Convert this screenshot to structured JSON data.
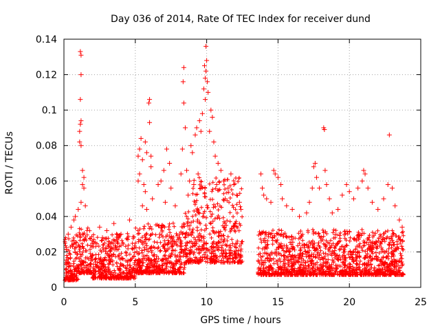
{
  "chart_data": {
    "type": "scatter",
    "title": "Day 036 of 2014, Rate Of TEC Index for receiver dund",
    "xlabel": "GPS time / hours",
    "ylabel": "ROTI / TECUs",
    "xlim": [
      0,
      25
    ],
    "ylim": [
      0,
      0.14
    ],
    "xticks": [
      0,
      5,
      10,
      15,
      20,
      25
    ],
    "xtick_labels": [
      "0",
      "5",
      "10",
      "15",
      "20",
      "25"
    ],
    "yticks": [
      0,
      0.02,
      0.04,
      0.06,
      0.08,
      0.1,
      0.12,
      0.14
    ],
    "ytick_labels": [
      "0",
      "0.02",
      "0.04",
      "0.06",
      "0.08",
      "0.1",
      "0.12",
      "0.14"
    ],
    "grid": true,
    "marker": "+",
    "color": "#ff0000",
    "data_gap_hours": [
      12.5,
      13.6
    ],
    "series": [
      {
        "name": "ROTI",
        "points": [
          [
            1.15,
            0.133
          ],
          [
            1.2,
            0.131
          ],
          [
            1.2,
            0.12
          ],
          [
            1.15,
            0.106
          ],
          [
            1.2,
            0.094
          ],
          [
            1.15,
            0.092
          ],
          [
            1.1,
            0.088
          ],
          [
            1.1,
            0.082
          ],
          [
            1.2,
            0.08
          ],
          [
            1.3,
            0.066
          ],
          [
            1.4,
            0.062
          ],
          [
            1.3,
            0.058
          ],
          [
            1.4,
            0.056
          ],
          [
            1.2,
            0.048
          ],
          [
            1.5,
            0.046
          ],
          [
            0.7,
            0.038
          ],
          [
            0.8,
            0.04
          ],
          [
            1.0,
            0.044
          ],
          [
            0.3,
            0.03
          ],
          [
            0.5,
            0.034
          ],
          [
            2.5,
            0.034
          ],
          [
            2.7,
            0.028
          ],
          [
            3.0,
            0.032
          ],
          [
            3.5,
            0.036
          ],
          [
            4.0,
            0.03
          ],
          [
            4.6,
            0.038
          ],
          [
            5.2,
            0.06
          ],
          [
            5.3,
            0.064
          ],
          [
            5.2,
            0.074
          ],
          [
            5.3,
            0.078
          ],
          [
            5.5,
            0.072
          ],
          [
            5.4,
            0.084
          ],
          [
            5.7,
            0.082
          ],
          [
            5.8,
            0.076
          ],
          [
            6.0,
            0.106
          ],
          [
            5.95,
            0.104
          ],
          [
            6.0,
            0.093
          ],
          [
            6.1,
            0.074
          ],
          [
            6.1,
            0.068
          ],
          [
            5.6,
            0.058
          ],
          [
            5.7,
            0.054
          ],
          [
            6.2,
            0.05
          ],
          [
            5.5,
            0.046
          ],
          [
            5.8,
            0.044
          ],
          [
            6.6,
            0.058
          ],
          [
            6.8,
            0.06
          ],
          [
            7.0,
            0.066
          ],
          [
            7.2,
            0.078
          ],
          [
            7.4,
            0.07
          ],
          [
            7.1,
            0.048
          ],
          [
            7.5,
            0.056
          ],
          [
            7.8,
            0.046
          ],
          [
            8.2,
            0.064
          ],
          [
            8.4,
            0.124
          ],
          [
            8.35,
            0.116
          ],
          [
            8.4,
            0.104
          ],
          [
            8.5,
            0.09
          ],
          [
            8.3,
            0.078
          ],
          [
            8.6,
            0.066
          ],
          [
            8.8,
            0.06
          ],
          [
            8.7,
            0.052
          ],
          [
            8.9,
            0.08
          ],
          [
            9.0,
            0.076
          ],
          [
            9.2,
            0.086
          ],
          [
            9.3,
            0.09
          ],
          [
            9.5,
            0.094
          ],
          [
            9.6,
            0.088
          ],
          [
            9.7,
            0.098
          ],
          [
            9.8,
            0.112
          ],
          [
            9.9,
            0.118
          ],
          [
            9.95,
            0.122
          ],
          [
            9.85,
            0.125
          ],
          [
            10.0,
            0.128
          ],
          [
            9.95,
            0.136
          ],
          [
            10.05,
            0.116
          ],
          [
            10.1,
            0.11
          ],
          [
            9.9,
            0.106
          ],
          [
            10.3,
            0.1
          ],
          [
            10.4,
            0.096
          ],
          [
            10.2,
            0.088
          ],
          [
            10.5,
            0.082
          ],
          [
            10.6,
            0.074
          ],
          [
            10.8,
            0.07
          ],
          [
            11.0,
            0.066
          ],
          [
            11.2,
            0.06
          ],
          [
            11.5,
            0.056
          ],
          [
            11.7,
            0.064
          ],
          [
            11.9,
            0.058
          ],
          [
            12.1,
            0.052
          ],
          [
            12.3,
            0.048
          ],
          [
            12.4,
            0.044
          ],
          [
            9.4,
            0.064
          ],
          [
            9.1,
            0.058
          ],
          [
            9.6,
            0.056
          ],
          [
            10.7,
            0.058
          ],
          [
            11.3,
            0.05
          ],
          [
            13.8,
            0.064
          ],
          [
            13.9,
            0.056
          ],
          [
            14.0,
            0.052
          ],
          [
            14.2,
            0.05
          ],
          [
            14.5,
            0.048
          ],
          [
            14.7,
            0.066
          ],
          [
            14.8,
            0.064
          ],
          [
            15.0,
            0.062
          ],
          [
            15.2,
            0.058
          ],
          [
            15.3,
            0.05
          ],
          [
            15.6,
            0.046
          ],
          [
            16.0,
            0.044
          ],
          [
            16.5,
            0.04
          ],
          [
            17.0,
            0.042
          ],
          [
            17.2,
            0.048
          ],
          [
            17.4,
            0.056
          ],
          [
            17.5,
            0.068
          ],
          [
            17.6,
            0.07
          ],
          [
            17.7,
            0.062
          ],
          [
            17.9,
            0.056
          ],
          [
            18.2,
            0.09
          ],
          [
            18.25,
            0.089
          ],
          [
            18.3,
            0.066
          ],
          [
            18.4,
            0.058
          ],
          [
            18.6,
            0.05
          ],
          [
            18.8,
            0.042
          ],
          [
            19.2,
            0.044
          ],
          [
            19.5,
            0.052
          ],
          [
            19.8,
            0.058
          ],
          [
            20.0,
            0.054
          ],
          [
            20.3,
            0.05
          ],
          [
            20.6,
            0.056
          ],
          [
            20.9,
            0.06
          ],
          [
            21.0,
            0.066
          ],
          [
            21.1,
            0.064
          ],
          [
            21.3,
            0.056
          ],
          [
            21.6,
            0.048
          ],
          [
            22.0,
            0.044
          ],
          [
            22.4,
            0.05
          ],
          [
            22.8,
            0.086
          ],
          [
            22.7,
            0.058
          ],
          [
            23.0,
            0.056
          ],
          [
            23.2,
            0.046
          ],
          [
            23.5,
            0.038
          ],
          [
            23.7,
            0.034
          ]
        ]
      }
    ]
  }
}
